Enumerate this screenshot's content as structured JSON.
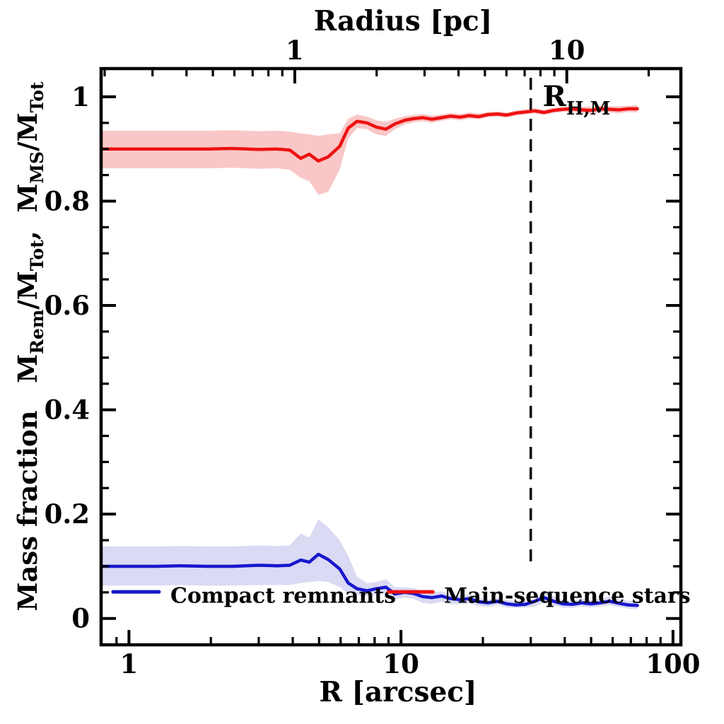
{
  "chart_data": {
    "type": "line",
    "top_axis": {
      "title": "Radius [pc]",
      "unit": "pc",
      "arcsec_per_pc": 4.07,
      "ticks": {
        "labels": [
          "1",
          "10"
        ],
        "values": [
          1,
          10
        ]
      }
    },
    "bottom_axis": {
      "title": "R [arcsec]",
      "scale": "log",
      "range_arcsec": [
        0.79,
        106.9
      ],
      "ticks": {
        "labels": [
          "1",
          "10",
          "100"
        ],
        "values": [
          1,
          10,
          100
        ]
      }
    },
    "left_axis": {
      "title": "Mass fraction  M_Rem/M_Tot, M_MS/M_Tot",
      "title_parts": [
        {
          "t": "Mass fraction   M",
          "sub": false
        },
        {
          "t": "Rem",
          "sub": true
        },
        {
          "t": "/M",
          "sub": false
        },
        {
          "t": "Tot",
          "sub": true
        },
        {
          "t": ",  M",
          "sub": false
        },
        {
          "t": "MS",
          "sub": true
        },
        {
          "t": "/M",
          "sub": false
        },
        {
          "t": "Tot",
          "sub": true
        }
      ],
      "range": [
        -0.0505,
        1.0541
      ],
      "minor_step": 0.05,
      "ticks": {
        "labels": [
          "0",
          "0.2",
          "0.4",
          "0.6",
          "0.8",
          "1"
        ],
        "values": [
          0,
          0.2,
          0.4,
          0.6,
          0.8,
          1
        ]
      }
    },
    "half_mass_radius": {
      "label_main": "R",
      "label_sub": "H,M",
      "x_arcsec": 30,
      "line_style": "dashed",
      "v_top": 1.0365,
      "v_bottom": 0.101,
      "label_r": 33.2,
      "label_v": 0.982
    },
    "colors": {
      "ms_line": "#ee1111",
      "ms_band": "#f9c7c7",
      "rem_line": "#1717cd",
      "rem_band": "#dadaf4",
      "frame": "#000000",
      "background": "#ffffff"
    },
    "series": [
      {
        "name": "Main-sequence stars",
        "color": "#ee1111",
        "band_color": "#f9c7c7",
        "r": [
          0.79,
          1.0,
          1.25,
          1.55,
          1.95,
          2.4,
          3.0,
          3.5,
          3.9,
          4.28,
          4.6,
          4.97,
          5.4,
          5.95,
          6.4,
          6.9,
          7.5,
          8.1,
          8.8,
          9.5,
          10.3,
          11.1,
          12.0,
          13.0,
          14.1,
          15.2,
          16.5,
          17.8,
          19.3,
          20.9,
          22.6,
          24.5,
          26.5,
          28.7,
          31.0,
          33.6,
          36.4,
          39.4,
          42.6,
          46.1,
          49.9,
          54.0,
          58.5,
          63.3,
          68.5,
          74.0
        ],
        "y": [
          0.9,
          0.9,
          0.9,
          0.9,
          0.9,
          0.901,
          0.899,
          0.9,
          0.898,
          0.882,
          0.89,
          0.877,
          0.885,
          0.905,
          0.94,
          0.953,
          0.95,
          0.942,
          0.938,
          0.948,
          0.955,
          0.958,
          0.96,
          0.957,
          0.96,
          0.963,
          0.961,
          0.964,
          0.962,
          0.966,
          0.967,
          0.965,
          0.969,
          0.971,
          0.973,
          0.97,
          0.974,
          0.976,
          0.977,
          0.975,
          0.974,
          0.977,
          0.976,
          0.975,
          0.977,
          0.977
        ],
        "lo": [
          0.863,
          0.863,
          0.863,
          0.863,
          0.863,
          0.864,
          0.862,
          0.863,
          0.86,
          0.845,
          0.838,
          0.812,
          0.818,
          0.86,
          0.92,
          0.94,
          0.938,
          0.928,
          0.925,
          0.938,
          0.947,
          0.951,
          0.953,
          0.95,
          0.954,
          0.957,
          0.955,
          0.958,
          0.957,
          0.961,
          0.962,
          0.96,
          0.964,
          0.966,
          0.968,
          0.965,
          0.969,
          0.971,
          0.972,
          0.969,
          0.967,
          0.971,
          0.97,
          0.968,
          0.971,
          0.97
        ],
        "hi": [
          0.935,
          0.935,
          0.935,
          0.935,
          0.935,
          0.936,
          0.934,
          0.935,
          0.933,
          0.93,
          0.928,
          0.925,
          0.928,
          0.93,
          0.958,
          0.966,
          0.962,
          0.955,
          0.952,
          0.958,
          0.963,
          0.965,
          0.967,
          0.964,
          0.966,
          0.969,
          0.967,
          0.97,
          0.968,
          0.971,
          0.972,
          0.97,
          0.974,
          0.976,
          0.978,
          0.975,
          0.979,
          0.981,
          0.982,
          0.981,
          0.981,
          0.983,
          0.982,
          0.982,
          0.983,
          0.984
        ]
      },
      {
        "name": "Compact remnants",
        "color": "#1717cd",
        "band_color": "#dadaf4",
        "r": [
          0.79,
          1.0,
          1.25,
          1.55,
          1.95,
          2.4,
          3.0,
          3.5,
          3.9,
          4.28,
          4.6,
          4.97,
          5.4,
          5.95,
          6.4,
          6.9,
          7.5,
          8.1,
          8.8,
          9.5,
          10.3,
          11.1,
          12.0,
          13.0,
          14.1,
          15.2,
          16.5,
          17.8,
          19.3,
          20.9,
          22.6,
          24.5,
          26.5,
          28.7,
          31.0,
          33.6,
          36.4,
          39.4,
          42.6,
          46.1,
          49.9,
          54.0,
          58.5,
          63.3,
          68.5,
          74.0
        ],
        "y": [
          0.1,
          0.1,
          0.1,
          0.101,
          0.1,
          0.1,
          0.102,
          0.101,
          0.102,
          0.112,
          0.108,
          0.123,
          0.113,
          0.095,
          0.068,
          0.057,
          0.053,
          0.057,
          0.06,
          0.047,
          0.05,
          0.048,
          0.042,
          0.04,
          0.043,
          0.038,
          0.036,
          0.038,
          0.032,
          0.03,
          0.033,
          0.028,
          0.026,
          0.027,
          0.033,
          0.04,
          0.033,
          0.028,
          0.027,
          0.03,
          0.028,
          0.03,
          0.033,
          0.029,
          0.026,
          0.025
        ],
        "lo": [
          0.063,
          0.063,
          0.063,
          0.064,
          0.063,
          0.063,
          0.064,
          0.064,
          0.064,
          0.068,
          0.07,
          0.072,
          0.07,
          0.06,
          0.048,
          0.045,
          0.042,
          0.045,
          0.048,
          0.037,
          0.04,
          0.038,
          0.03,
          0.028,
          0.032,
          0.027,
          0.028,
          0.029,
          0.024,
          0.022,
          0.026,
          0.021,
          0.02,
          0.021,
          0.023,
          0.031,
          0.025,
          0.021,
          0.02,
          0.023,
          0.021,
          0.023,
          0.025,
          0.022,
          0.019,
          0.018
        ],
        "hi": [
          0.138,
          0.138,
          0.138,
          0.139,
          0.138,
          0.138,
          0.14,
          0.139,
          0.14,
          0.163,
          0.155,
          0.19,
          0.175,
          0.15,
          0.12,
          0.08,
          0.068,
          0.07,
          0.075,
          0.06,
          0.06,
          0.058,
          0.052,
          0.05,
          0.052,
          0.046,
          0.044,
          0.046,
          0.04,
          0.036,
          0.04,
          0.035,
          0.033,
          0.034,
          0.036,
          0.05,
          0.042,
          0.035,
          0.034,
          0.038,
          0.035,
          0.038,
          0.042,
          0.037,
          0.034,
          0.033
        ]
      }
    ],
    "legend": [
      {
        "label": "Compact remnants",
        "color": "#1717cd",
        "sample_r": [
          0.874,
          1.29
        ],
        "sample_v": 0.051,
        "text_r": 1.42,
        "text_v": 0.03
      },
      {
        "label": "Main-sequence stars",
        "color": "#ee1111",
        "sample_r": [
          9.0,
          13.1
        ],
        "sample_v": 0.051,
        "text_r": 14.4,
        "text_v": 0.03
      }
    ]
  }
}
